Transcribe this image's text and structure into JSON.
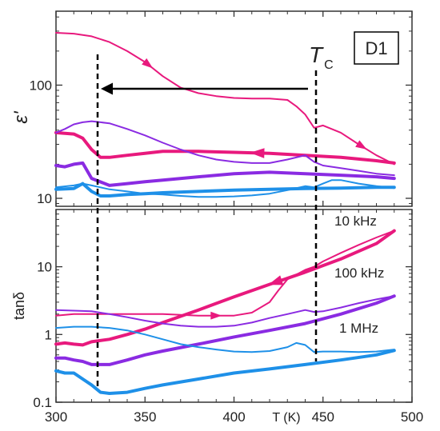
{
  "chart_data": [
    {
      "type": "line",
      "panel": "top",
      "ylabel": "ε'",
      "yscale": "log",
      "xlim": [
        300,
        500
      ],
      "ylim": [
        8.5,
        450
      ],
      "x_ticks": [
        300,
        350,
        400,
        450,
        500
      ],
      "y_ticks": [
        {
          "value": 10,
          "label": "10"
        },
        {
          "value": 100,
          "label": "100"
        }
      ],
      "grid": false,
      "colors": {
        "10 kHz": "#e8197d",
        "100 kHz": "#8a2be2",
        "1 MHz": "#1e90e8"
      },
      "series": [
        {
          "group": "10 kHz",
          "run": "heating",
          "x": [
            300,
            310,
            320,
            330,
            340,
            350,
            360,
            370,
            380,
            390,
            400,
            410,
            420,
            430,
            435,
            440,
            445,
            450,
            460,
            470,
            480,
            490
          ],
          "y": [
            290,
            285,
            270,
            240,
            200,
            160,
            120,
            95,
            85,
            80,
            77,
            76,
            76,
            74,
            65,
            55,
            42,
            44,
            38,
            30,
            24,
            20
          ]
        },
        {
          "group": "10 kHz",
          "run": "cooling",
          "x": [
            300,
            310,
            315,
            320,
            325,
            330,
            340,
            350,
            360,
            380,
            400,
            420,
            440,
            460,
            480,
            490
          ],
          "y": [
            38,
            37,
            34,
            27,
            23,
            23,
            24,
            25,
            26,
            26,
            25.5,
            25,
            24,
            23,
            21.5,
            20.5
          ]
        },
        {
          "group": "100 kHz",
          "run": "heating",
          "x": [
            300,
            305,
            310,
            315,
            320,
            330,
            340,
            350,
            360,
            370,
            380,
            390,
            400,
            410,
            420,
            430,
            440,
            445,
            450,
            460,
            470,
            480,
            490
          ],
          "y": [
            38,
            41,
            45,
            47,
            48,
            46,
            41,
            36,
            31,
            27,
            24,
            22,
            21,
            20.5,
            20.5,
            22,
            24,
            21,
            19.5,
            18.5,
            17.5,
            16.5,
            16
          ]
        },
        {
          "group": "100 kHz",
          "run": "cooling",
          "x": [
            300,
            305,
            310,
            315,
            320,
            330,
            340,
            350,
            360,
            380,
            400,
            420,
            440,
            460,
            480,
            490
          ],
          "y": [
            19.5,
            19,
            20,
            20.5,
            15,
            13,
            13.5,
            14,
            14.5,
            15.5,
            16.5,
            17,
            16.5,
            16,
            15.5,
            15
          ]
        },
        {
          "group": "1 MHz",
          "run": "heating",
          "x": [
            300,
            310,
            315,
            320,
            325,
            330,
            340,
            350,
            360,
            370,
            380,
            390,
            400,
            410,
            420,
            430,
            440,
            445,
            450,
            455,
            460,
            470,
            480,
            490
          ],
          "y": [
            12.5,
            13,
            13.5,
            13,
            12.5,
            12,
            11.5,
            11,
            10.8,
            10.5,
            10.3,
            10.3,
            10.4,
            10.6,
            11,
            11.8,
            12.8,
            12.5,
            13.5,
            14.5,
            14.5,
            13.5,
            12.8,
            12.3
          ]
        },
        {
          "group": "1 MHz",
          "run": "cooling",
          "x": [
            300,
            310,
            315,
            320,
            325,
            330,
            340,
            350,
            360,
            380,
            400,
            420,
            440,
            460,
            480,
            490
          ],
          "y": [
            12,
            12.2,
            13.5,
            11.5,
            10.5,
            10.5,
            10.8,
            11,
            11.2,
            11.5,
            11.8,
            12,
            12.2,
            12.3,
            12.5,
            12.5
          ]
        }
      ],
      "annotations": {
        "panel_label": "D1",
        "tc_label": "T",
        "tc_subscript": "C",
        "tc_x": 445,
        "shift_to_x": 323
      }
    },
    {
      "type": "line",
      "panel": "bottom",
      "ylabel": "tanδ",
      "yscale": "log",
      "xlabel": "T (K)",
      "xlim": [
        300,
        500
      ],
      "ylim": [
        0.1,
        70
      ],
      "x_ticks": [
        300,
        350,
        400,
        450,
        500
      ],
      "y_ticks": [
        {
          "value": 0.1,
          "label": "0.1"
        },
        {
          "value": 1,
          "label": "1"
        },
        {
          "value": 10,
          "label": "10"
        }
      ],
      "grid": false,
      "series": [
        {
          "group": "10 kHz",
          "run": "heating",
          "x": [
            300,
            310,
            320,
            330,
            340,
            350,
            360,
            370,
            380,
            390,
            400,
            410,
            420,
            425,
            430,
            440,
            445,
            450,
            460,
            470,
            480,
            490
          ],
          "y": [
            1.9,
            2.0,
            2.0,
            2.0,
            2.0,
            2.0,
            2.0,
            1.95,
            1.9,
            1.9,
            1.9,
            2.1,
            3.0,
            4.5,
            6.5,
            9,
            10,
            12,
            16,
            21,
            27,
            34
          ]
        },
        {
          "group": "10 kHz",
          "run": "cooling",
          "x": [
            300,
            305,
            310,
            315,
            320,
            330,
            340,
            350,
            360,
            380,
            400,
            420,
            440,
            460,
            480,
            490
          ],
          "y": [
            0.72,
            0.75,
            0.72,
            0.7,
            0.78,
            0.85,
            1.0,
            1.2,
            1.5,
            2.3,
            3.6,
            5.5,
            8.3,
            13,
            22,
            34
          ]
        },
        {
          "group": "100 kHz",
          "run": "heating",
          "x": [
            300,
            310,
            320,
            330,
            340,
            350,
            360,
            370,
            380,
            390,
            400,
            410,
            420,
            430,
            440,
            445,
            450,
            460,
            470,
            480,
            490
          ],
          "y": [
            2.3,
            2.25,
            2.2,
            2.0,
            1.8,
            1.6,
            1.45,
            1.35,
            1.3,
            1.3,
            1.35,
            1.5,
            1.75,
            2.0,
            2.3,
            2.15,
            2.2,
            2.5,
            2.9,
            3.3,
            3.7
          ]
        },
        {
          "group": "100 kHz",
          "run": "cooling",
          "x": [
            300,
            305,
            310,
            315,
            320,
            330,
            340,
            350,
            360,
            380,
            400,
            420,
            440,
            460,
            480,
            490
          ],
          "y": [
            0.45,
            0.45,
            0.42,
            0.4,
            0.36,
            0.36,
            0.42,
            0.5,
            0.57,
            0.72,
            0.92,
            1.15,
            1.45,
            2.0,
            2.9,
            3.7
          ]
        },
        {
          "group": "1 MHz",
          "run": "heating",
          "x": [
            300,
            310,
            320,
            330,
            340,
            350,
            360,
            370,
            380,
            390,
            400,
            410,
            420,
            430,
            435,
            440,
            445,
            450,
            460,
            470,
            480,
            490
          ],
          "y": [
            1.25,
            1.3,
            1.3,
            1.25,
            1.15,
            1.0,
            0.85,
            0.72,
            0.65,
            0.6,
            0.56,
            0.55,
            0.57,
            0.65,
            0.75,
            0.7,
            0.55,
            0.56,
            0.56,
            0.55,
            0.56,
            0.6
          ]
        },
        {
          "group": "1 MHz",
          "run": "cooling",
          "x": [
            300,
            305,
            310,
            315,
            320,
            325,
            330,
            340,
            350,
            360,
            380,
            400,
            420,
            440,
            460,
            480,
            490
          ],
          "y": [
            0.29,
            0.27,
            0.27,
            0.22,
            0.18,
            0.14,
            0.135,
            0.14,
            0.16,
            0.18,
            0.22,
            0.27,
            0.31,
            0.36,
            0.42,
            0.5,
            0.58
          ]
        }
      ],
      "legend_labels": [
        "10 kHz",
        "100 kHz",
        "1 MHz"
      ]
    }
  ]
}
